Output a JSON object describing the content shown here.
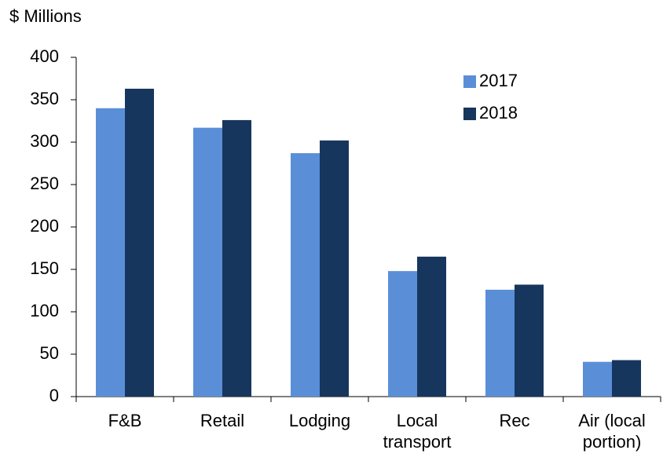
{
  "chart_data": {
    "type": "bar",
    "ylabel": "$ Millions",
    "categories": [
      "F&B",
      "Retail",
      "Lodging",
      "Local\ntransport",
      "Rec",
      "Air (local\nportion)"
    ],
    "series": [
      {
        "name": "2017",
        "color": "#5a8fd8",
        "values": [
          340,
          317,
          287,
          148,
          126,
          41
        ]
      },
      {
        "name": "2018",
        "color": "#17365d",
        "values": [
          363,
          326,
          302,
          165,
          132,
          43
        ]
      }
    ],
    "ylim": [
      0,
      400
    ],
    "yticks": [
      0,
      50,
      100,
      150,
      200,
      250,
      300,
      350,
      400
    ],
    "legend": "upper right"
  }
}
